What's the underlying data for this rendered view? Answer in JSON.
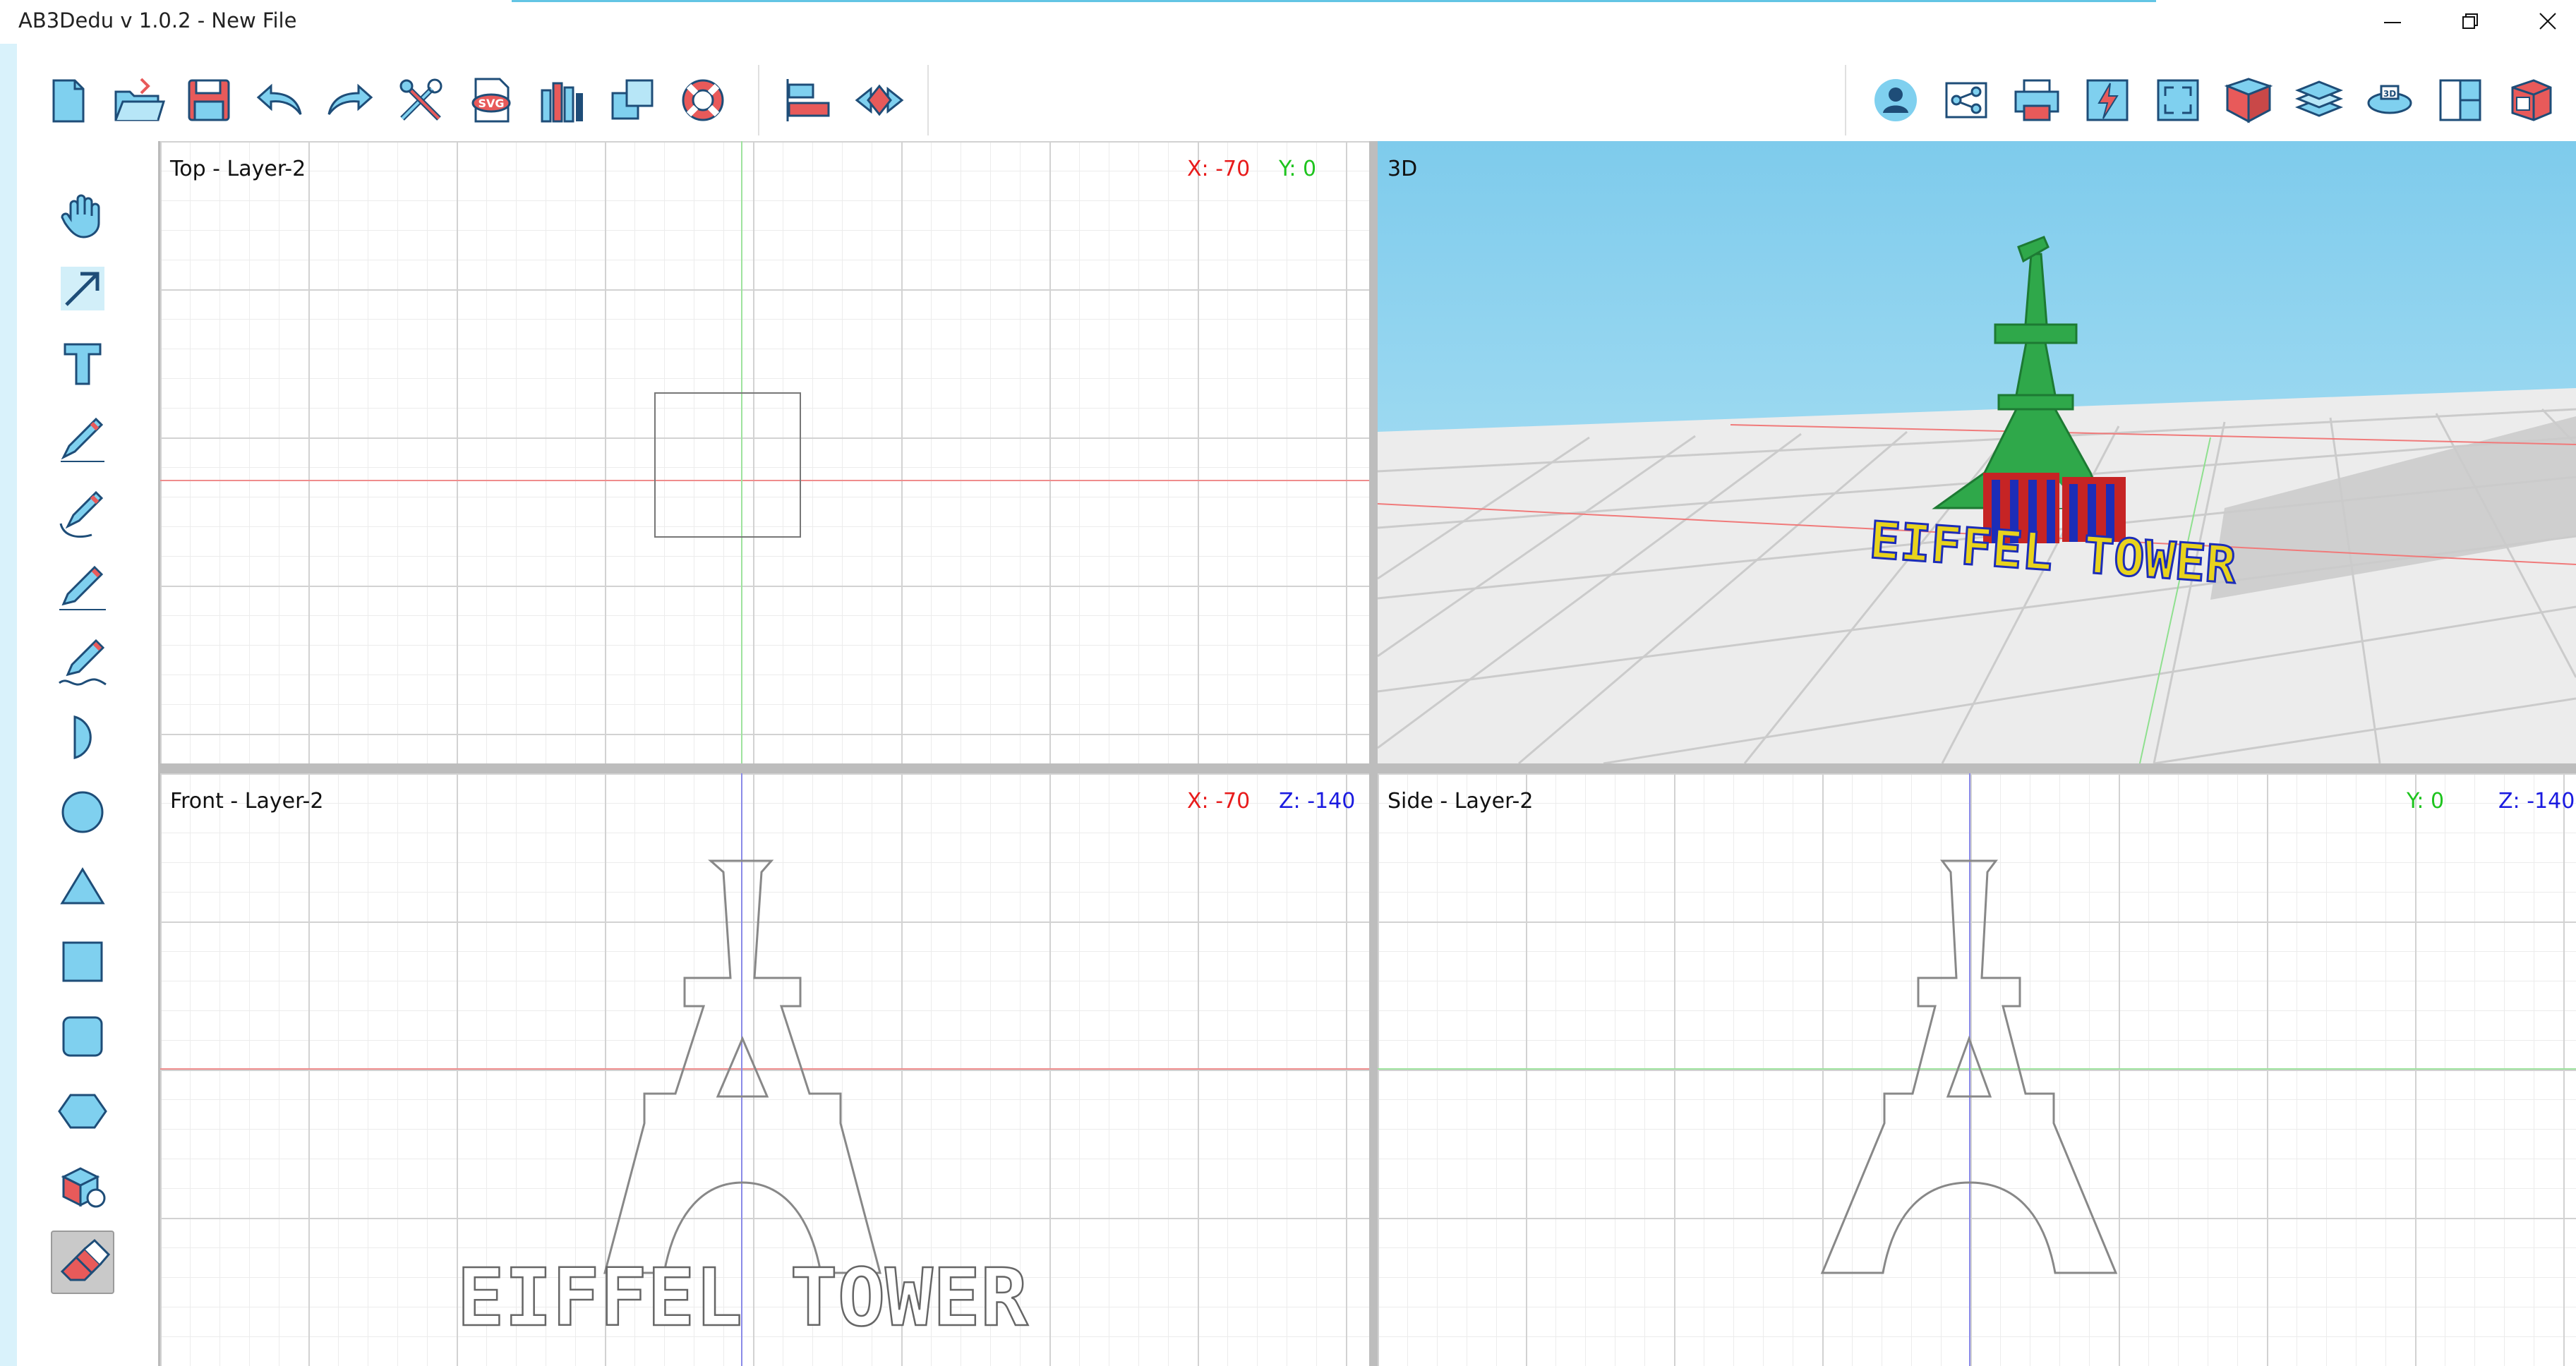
{
  "window": {
    "title": "AB3Dedu v 1.0.2 - New File"
  },
  "colors": {
    "accent": "#63c5e4",
    "icon_blue": "#7fd0ef",
    "icon_stroke": "#1e4d78",
    "icon_red": "#e85a5a",
    "x_axis": "#e81b1b",
    "y_axis": "#1ec41e",
    "z_axis": "#1a1ae0",
    "tower_green": "#2fa84a"
  },
  "toolbar": {
    "left": [
      "new-file-icon",
      "open-folder-icon",
      "save-icon",
      "undo-icon",
      "redo-icon",
      "tools-icon",
      "svg-import-icon",
      "library-icon",
      "duplicate-icon",
      "help-lifebuoy-icon",
      "align-icon",
      "mirror-icon"
    ],
    "right": [
      "user-icon",
      "share-icon",
      "print-icon",
      "quick-icon",
      "fullscreen-icon",
      "3d-box-icon",
      "layers-icon",
      "3d-view-icon",
      "layout-icon",
      "stl-export-icon"
    ]
  },
  "sidebar": {
    "tools": [
      "hand-icon",
      "select-arrow-icon",
      "text-tool-icon",
      "pen-icon",
      "bezier-pen-icon",
      "pencil-icon",
      "freehand-icon",
      "half-circle-icon",
      "circle-icon",
      "triangle-icon",
      "square-icon",
      "rounded-square-icon",
      "hexagon-icon",
      "3d-object-icon",
      "eraser-icon"
    ],
    "active_tool": "eraser-icon"
  },
  "views": {
    "top": {
      "label": "Top - Layer-2",
      "coord1": "X: -70",
      "coord2": "Y: 0"
    },
    "three_d": {
      "label": "3D",
      "model_text": "EIFFEL TOWER"
    },
    "front": {
      "label": "Front - Layer-2",
      "coord1": "X: -70",
      "coord2": "Z: -140",
      "model_text": "EIFFEL TOWER"
    },
    "side": {
      "label": "Side - Layer-2",
      "coord1": "Y: 0",
      "coord2": "Z: -140"
    }
  }
}
